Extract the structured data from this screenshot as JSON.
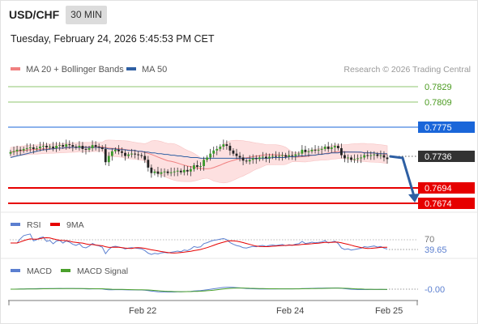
{
  "header": {
    "pair": "USD/CHF",
    "timeframe": "30 MIN",
    "datetime": "Tuesday, February 24, 2026 5:45:53 PM CET",
    "legend": [
      {
        "label": "MA 20 + Bollinger Bands",
        "color": "#f08080"
      },
      {
        "label": "MA 50",
        "color": "#2e5fa3"
      }
    ],
    "research": "Research © 2026 Trading Central"
  },
  "price_levels": [
    {
      "value": "0.7829",
      "color": "#6aa84f",
      "style": "plain"
    },
    {
      "value": "0.7809",
      "color": "#6aa84f",
      "style": "plain"
    },
    {
      "value": "0.7775",
      "color": "#1a66d9",
      "style": "box"
    },
    {
      "value": "0.7736",
      "color": "#333333",
      "style": "box"
    },
    {
      "value": "0.7694",
      "color": "#e60000",
      "style": "box"
    },
    {
      "value": "0.7674",
      "color": "#e60000",
      "style": "box"
    }
  ],
  "rsi_panel": {
    "legend": [
      {
        "label": "RSI",
        "color": "#5b7fd0"
      },
      {
        "label": "9MA",
        "color": "#e60000"
      }
    ],
    "level": "70",
    "value": "39.65"
  },
  "macd_panel": {
    "legend": [
      {
        "label": "MACD",
        "color": "#5b7fd0"
      },
      {
        "label": "MACD Signal",
        "color": "#4aa02c"
      }
    ],
    "value": "-0.00"
  },
  "x_axis": {
    "ticks": [
      "Feb 22",
      "Feb 24",
      "Feb 25"
    ]
  },
  "chart_data": {
    "type": "candlestick",
    "instrument": "USD/CHF",
    "interval": "30 MIN",
    "x_ticks": [
      "Feb 22",
      "Feb 24",
      "Feb 25"
    ],
    "ylim": [
      0.7665,
      0.7838
    ],
    "close": [
      0.7745,
      0.7746,
      0.7748,
      0.7747,
      0.7749,
      0.775,
      0.7751,
      0.7749,
      0.775,
      0.7752,
      0.7753,
      0.7751,
      0.7752,
      0.775,
      0.7753,
      0.7754,
      0.7752,
      0.7755,
      0.7754,
      0.7752,
      0.7751,
      0.7753,
      0.7749,
      0.7748,
      0.775,
      0.7754,
      0.7752,
      0.7751,
      0.7749,
      0.7732,
      0.774,
      0.7746,
      0.7748,
      0.7746,
      0.7744,
      0.774,
      0.7742,
      0.7743,
      0.7742,
      0.7741,
      0.774,
      0.7735,
      0.7725,
      0.7718,
      0.772,
      0.7717,
      0.7719,
      0.772,
      0.7718,
      0.7719,
      0.772,
      0.7721,
      0.7719,
      0.7722,
      0.772,
      0.7723,
      0.7728,
      0.7726,
      0.7727,
      0.7735,
      0.7738,
      0.7743,
      0.7747,
      0.7749,
      0.7752,
      0.7755,
      0.7753,
      0.7747,
      0.7743,
      0.774,
      0.7738,
      0.7734,
      0.7733,
      0.7735,
      0.7737,
      0.7736,
      0.7738,
      0.7739,
      0.7737,
      0.7739,
      0.774,
      0.7739,
      0.774,
      0.7741,
      0.7739,
      0.7741,
      0.774,
      0.7742,
      0.7743,
      0.7748,
      0.7745,
      0.7746,
      0.7748,
      0.7747,
      0.7748,
      0.7749,
      0.7752,
      0.7749,
      0.7751,
      0.7753,
      0.775,
      0.7741,
      0.7737,
      0.7738,
      0.7735,
      0.7736,
      0.7737,
      0.7738,
      0.7741,
      0.774,
      0.7741,
      0.7742,
      0.774,
      0.7741,
      0.7738,
      0.7736
    ],
    "ma50": [
      0.7738,
      0.7739,
      0.774,
      0.7741,
      0.7742,
      0.7743,
      0.7744,
      0.7745,
      0.7746,
      0.7747,
      0.7748,
      0.7748,
      0.7749,
      0.7749,
      0.775,
      0.775,
      0.775,
      0.7751,
      0.7751,
      0.7751,
      0.7751,
      0.7751,
      0.7751,
      0.7751,
      0.7751,
      0.7751,
      0.7751,
      0.7751,
      0.775,
      0.775,
      0.7749,
      0.7749,
      0.7749,
      0.7748,
      0.7748,
      0.7748,
      0.7747,
      0.7747,
      0.7747,
      0.7746,
      0.7746,
      0.7745,
      0.7745,
      0.7744,
      0.7744,
      0.7743,
      0.7743,
      0.7742,
      0.7742,
      0.7741,
      0.7741,
      0.774,
      0.774,
      0.7739,
      0.7739,
      0.7738,
      0.7738,
      0.7738,
      0.7737,
      0.7737,
      0.7737,
      0.7737,
      0.7737,
      0.7737,
      0.7737,
      0.7737,
      0.7737,
      0.7737,
      0.7737,
      0.7737,
      0.7737,
      0.7737,
      0.7737,
      0.7737,
      0.7737,
      0.7737,
      0.7737,
      0.7737,
      0.7737,
      0.7737,
      0.7738,
      0.7738,
      0.7738,
      0.7738,
      0.7738,
      0.7739,
      0.7739,
      0.7739,
      0.774,
      0.774,
      0.774,
      0.7741,
      0.7741,
      0.7741,
      0.7742,
      0.7742,
      0.7743,
      0.7743,
      0.7744,
      0.7744,
      0.7744,
      0.7745,
      0.7745,
      0.7745,
      0.7745,
      0.7745,
      0.7745,
      0.7745,
      0.7744,
      0.7744,
      0.7744,
      0.7744,
      0.7743,
      0.7743,
      0.7743,
      0.7743
    ],
    "rsi_level": 70,
    "rsi_last": 39.65,
    "macd_last": -0.0,
    "levels": [
      0.7829,
      0.7809,
      0.7775,
      0.7736,
      0.7694,
      0.7674
    ]
  }
}
